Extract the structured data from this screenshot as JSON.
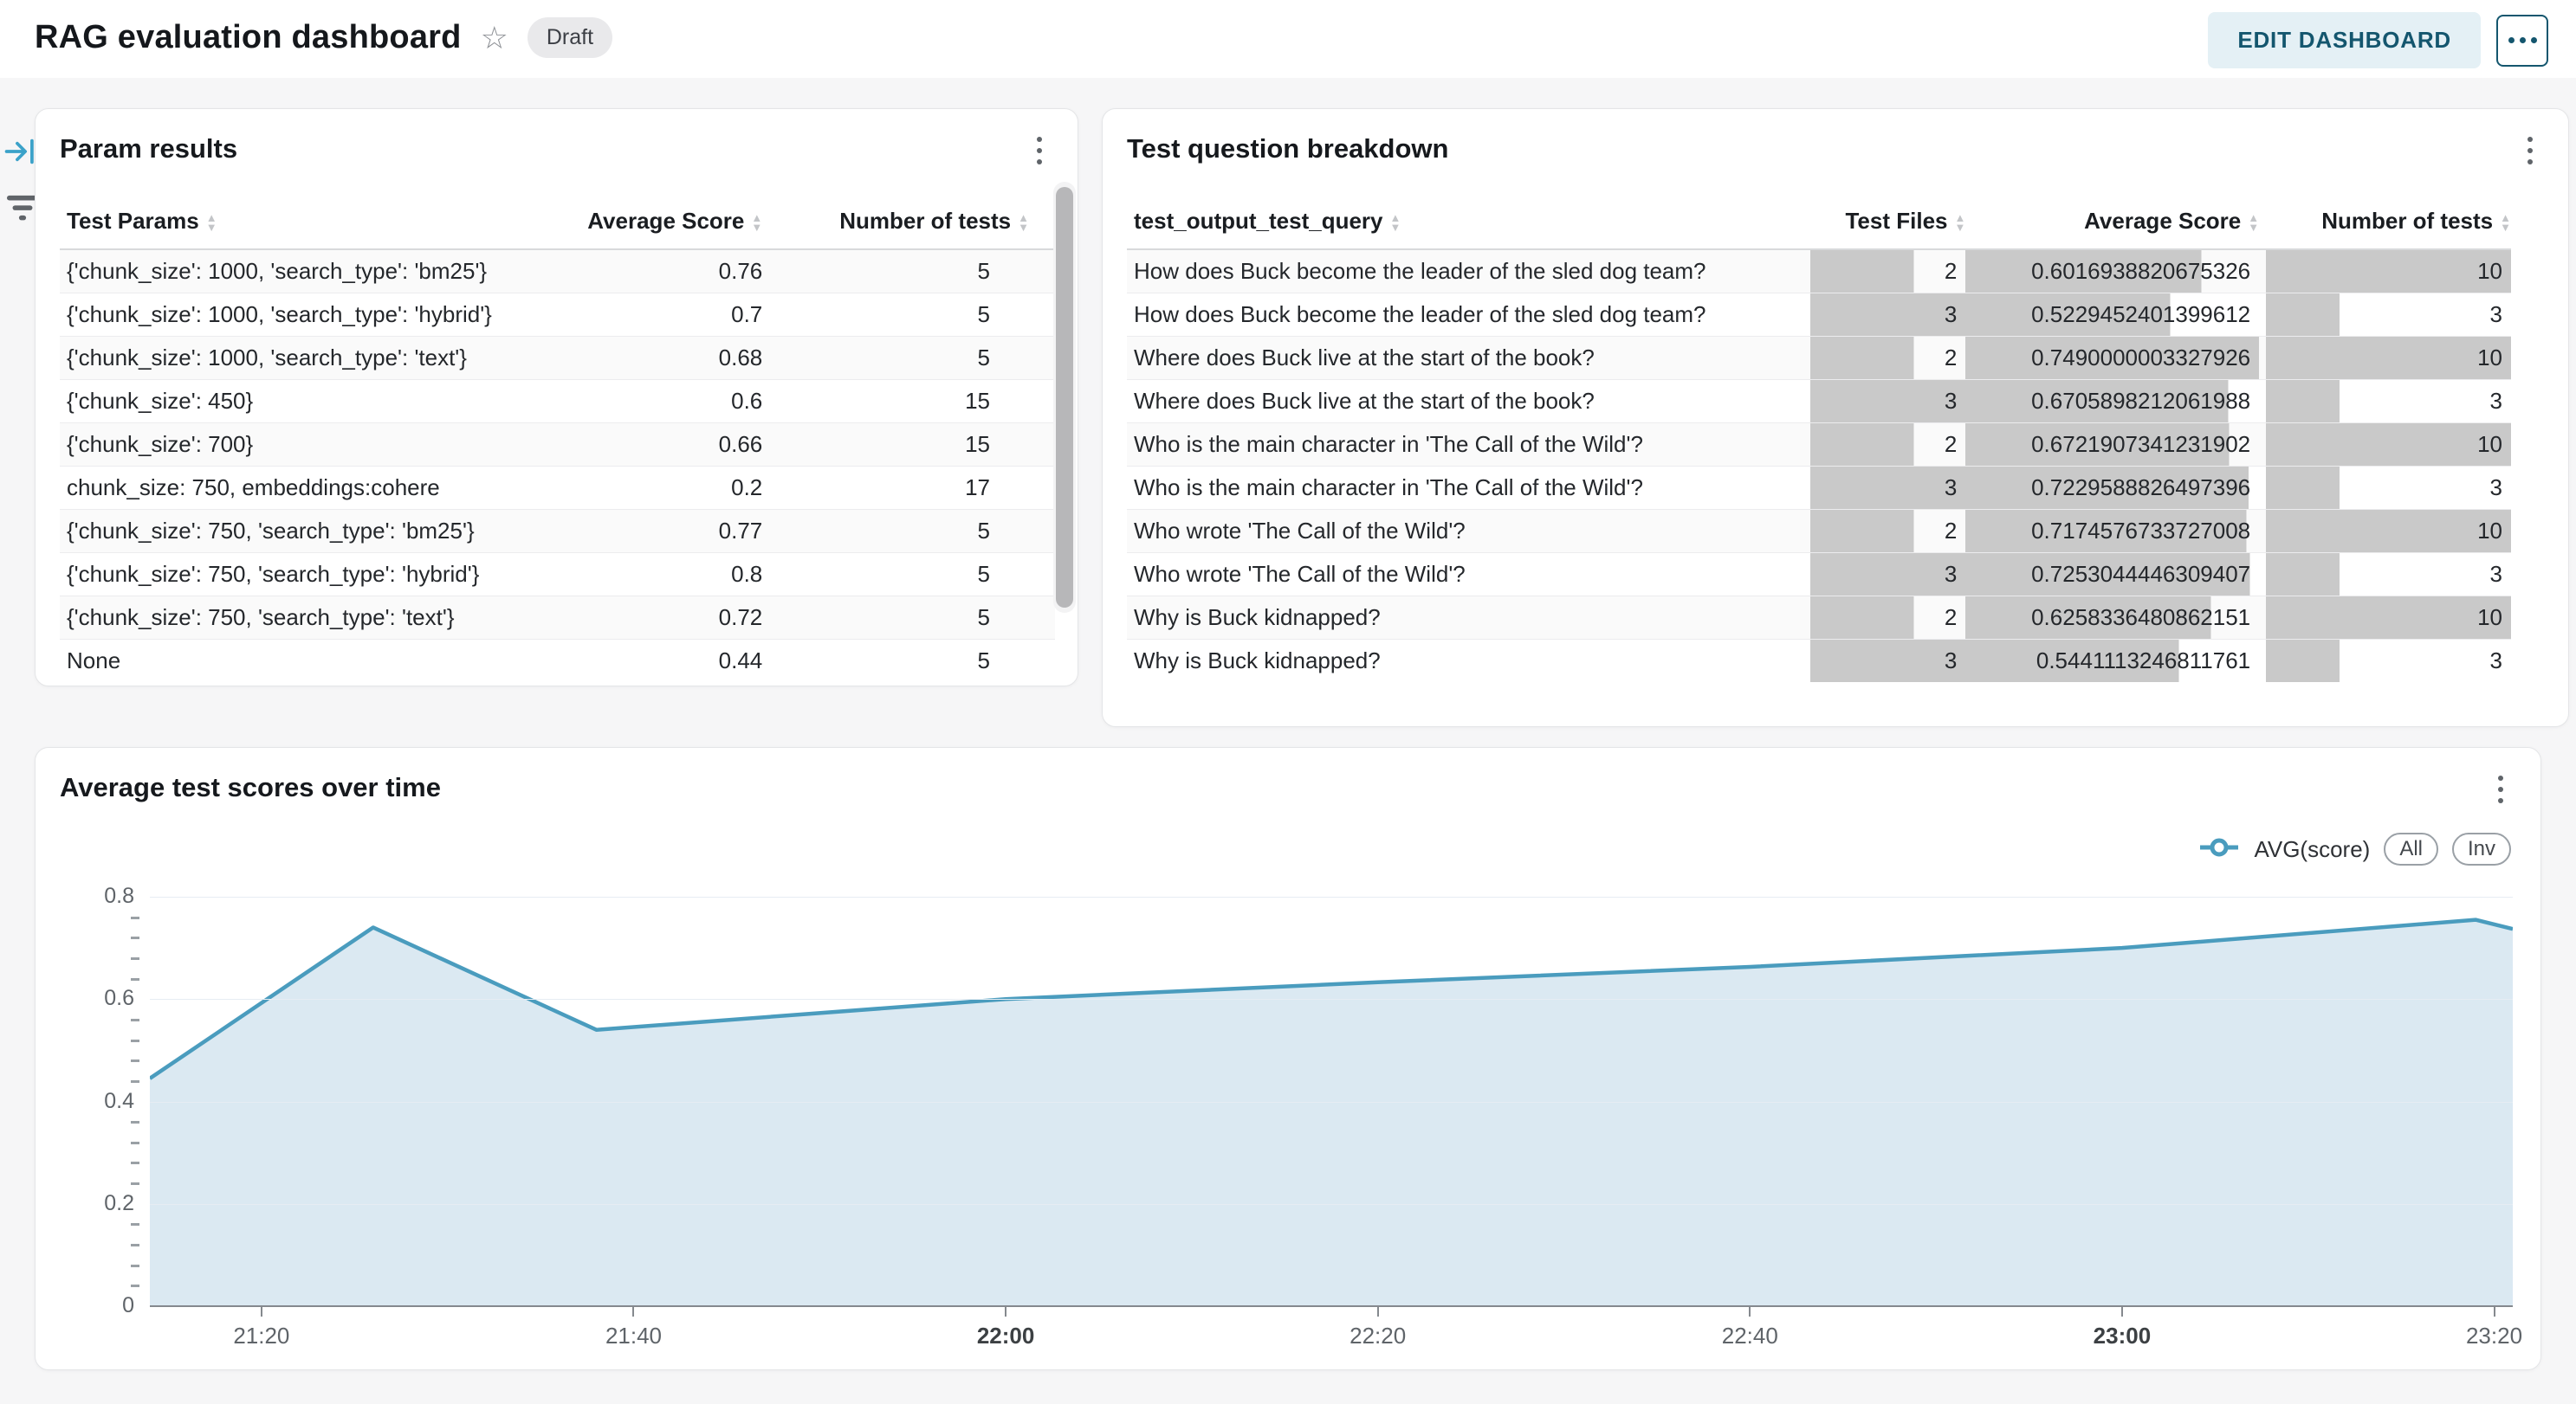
{
  "header": {
    "title": "RAG evaluation dashboard",
    "status_badge": "Draft",
    "edit_button": "EDIT DASHBOARD",
    "star_icon": "star-outline",
    "more_icon": "ellipsis"
  },
  "side_controls": {
    "expand_icon": "arrow-to-bar",
    "filter_icon": "filter-lines"
  },
  "colors": {
    "accent_teal": "#14566e",
    "edit_button_bg": "#e4f0f5",
    "bar_gray": "#c9c9c9",
    "line_blue": "#4a9cbe",
    "area_fill": "#dbe9f2",
    "page_bg": "#f6f6f7"
  },
  "param_results": {
    "title": "Param results",
    "columns": [
      "Test Params",
      "Average Score",
      "Number of tests"
    ],
    "rows": [
      {
        "params": "{'chunk_size': 1000, 'search_type': 'bm25'}",
        "avg": "0.76",
        "tests": "5"
      },
      {
        "params": "{'chunk_size': 1000, 'search_type': 'hybrid'}",
        "avg": "0.7",
        "tests": "5"
      },
      {
        "params": "{'chunk_size': 1000, 'search_type': 'text'}",
        "avg": "0.68",
        "tests": "5"
      },
      {
        "params": "{'chunk_size': 450}",
        "avg": "0.6",
        "tests": "15"
      },
      {
        "params": "{'chunk_size': 700}",
        "avg": "0.66",
        "tests": "15"
      },
      {
        "params": "chunk_size: 750, embeddings:cohere",
        "avg": "0.2",
        "tests": "17"
      },
      {
        "params": "{'chunk_size': 750, 'search_type': 'bm25'}",
        "avg": "0.77",
        "tests": "5"
      },
      {
        "params": "{'chunk_size': 750, 'search_type': 'hybrid'}",
        "avg": "0.8",
        "tests": "5"
      },
      {
        "params": "{'chunk_size': 750, 'search_type': 'text'}",
        "avg": "0.72",
        "tests": "5"
      },
      {
        "params": "None",
        "avg": "0.44",
        "tests": "5"
      }
    ]
  },
  "question_breakdown": {
    "title": "Test question breakdown",
    "columns": [
      "test_output_test_query",
      "Test Files",
      "Average Score",
      "Number of tests"
    ],
    "rows": [
      {
        "query": "How does Buck become the leader of the sled dog team?",
        "files": 2,
        "score": "0.6016938820675326",
        "tests": 10
      },
      {
        "query": "How does Buck become the leader of the sled dog team?",
        "files": 3,
        "score": "0.5229452401399612",
        "tests": 3
      },
      {
        "query": "Where does Buck live at the start of the book?",
        "files": 2,
        "score": "0.7490000003327926",
        "tests": 10
      },
      {
        "query": "Where does Buck live at the start of the book?",
        "files": 3,
        "score": "0.6705898212061988",
        "tests": 3
      },
      {
        "query": "Who is the main character in 'The Call of the Wild'?",
        "files": 2,
        "score": "0.6721907341231902",
        "tests": 10
      },
      {
        "query": "Who is the main character in 'The Call of the Wild'?",
        "files": 3,
        "score": "0.7229588826497396",
        "tests": 3
      },
      {
        "query": "Who wrote 'The Call of the Wild'?",
        "files": 2,
        "score": "0.7174576733727008",
        "tests": 10
      },
      {
        "query": "Who wrote 'The Call of the Wild'?",
        "files": 3,
        "score": "0.7253044446309407",
        "tests": 3
      },
      {
        "query": "Why is Buck kidnapped?",
        "files": 2,
        "score": "0.6258336480862151",
        "tests": 10
      },
      {
        "query": "Why is Buck kidnapped?",
        "files": 3,
        "score": "0.5441113246811761",
        "tests": 3
      }
    ]
  },
  "chart_data": {
    "type": "area",
    "title": "Average test scores over time",
    "series": [
      {
        "name": "AVG(score)",
        "points": [
          [
            "21:14",
            0.445
          ],
          [
            "21:26",
            0.74
          ],
          [
            "21:38",
            0.54
          ],
          [
            "22:00",
            0.6
          ],
          [
            "22:20",
            0.633
          ],
          [
            "22:40",
            0.663
          ],
          [
            "23:00",
            0.7
          ],
          [
            "23:19",
            0.755
          ],
          [
            "23:21",
            0.737
          ]
        ]
      }
    ],
    "x_domain": [
      "21:14",
      "23:21"
    ],
    "y_domain": [
      0,
      0.8
    ],
    "y_major_step": 0.2,
    "y_minor_step": 0.04,
    "x_ticks": [
      "21:20",
      "21:40",
      "22:00",
      "22:20",
      "22:40",
      "23:00",
      "23:20"
    ],
    "x_ticks_bold": [
      "22:00",
      "23:00"
    ],
    "grid": true,
    "line_color": "#4a9cbe",
    "fill_color": "#dbe9f2",
    "legend": {
      "series_label": "AVG(score)",
      "buttons": [
        "All",
        "Inv"
      ],
      "position": "top-right"
    }
  }
}
